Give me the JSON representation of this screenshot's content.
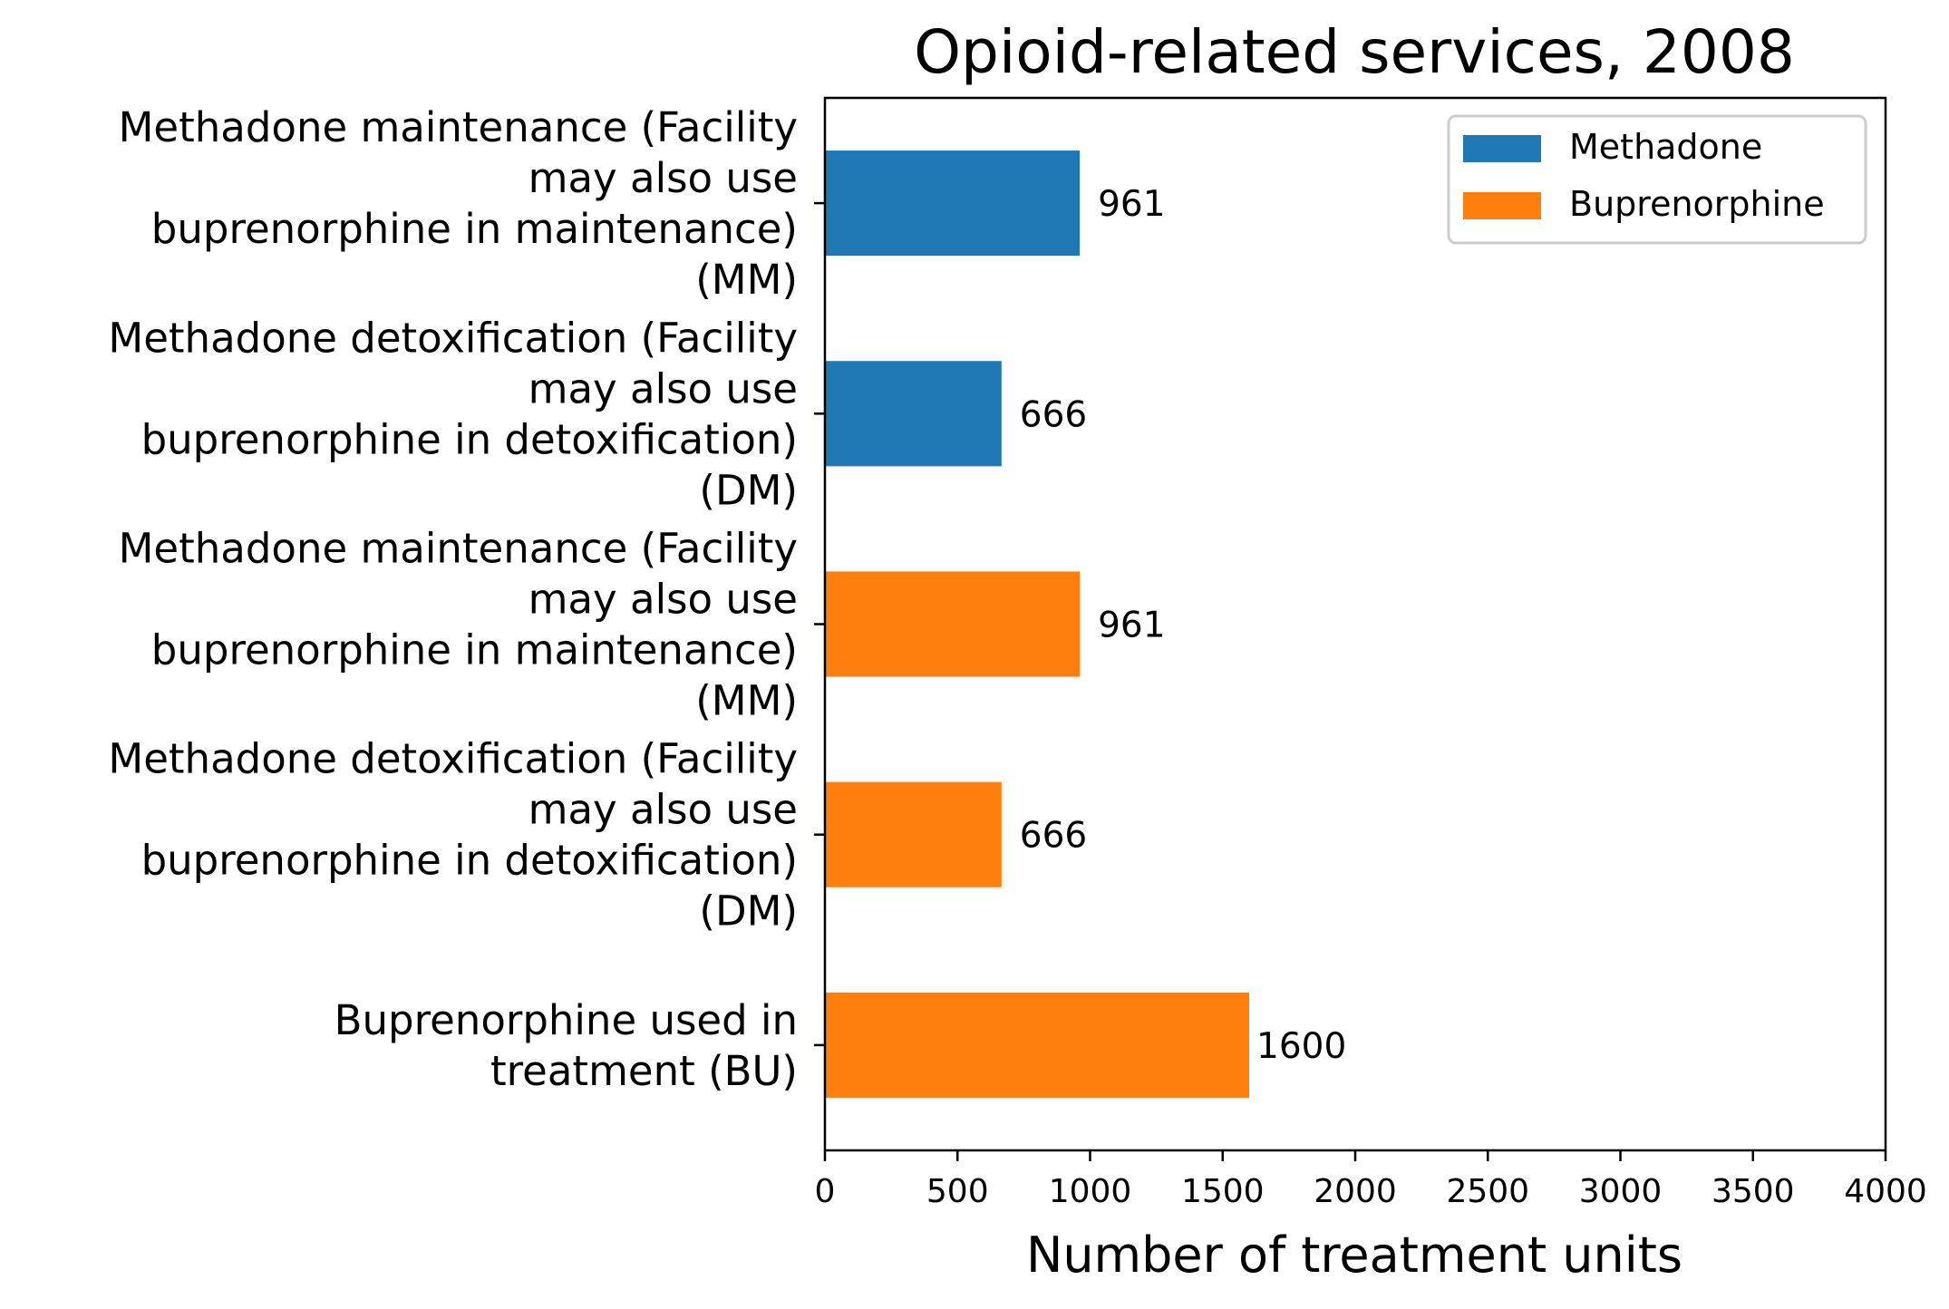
{
  "chart_data": {
    "type": "bar",
    "orientation": "horizontal",
    "title": "Opioid-related services, 2008",
    "xlabel": "Number of treatment units",
    "ylabel": "",
    "xlim": [
      0,
      4000
    ],
    "xticks": [
      "0",
      "500",
      "1000",
      "1500",
      "2000",
      "2500",
      "3000",
      "3500",
      "4000"
    ],
    "grid": false,
    "legend_position": "top-right",
    "categories": [
      {
        "label_lines": [
          "Methadone maintenance (Facility",
          "may also use",
          "buprenorphine in maintenance)",
          "(MM)"
        ],
        "value": 961,
        "value_label": "961",
        "series": "Methadone"
      },
      {
        "label_lines": [
          "Methadone detoxification (Facility",
          "may also use",
          "buprenorphine in detoxification)",
          "(DM)"
        ],
        "value": 666,
        "value_label": "666",
        "series": "Methadone"
      },
      {
        "label_lines": [
          "Methadone maintenance (Facility",
          "may also use",
          "buprenorphine in maintenance)",
          "(MM)"
        ],
        "value": 961,
        "value_label": "961",
        "series": "Buprenorphine"
      },
      {
        "label_lines": [
          "Methadone detoxification (Facility",
          "may also use",
          "buprenorphine in detoxification)",
          "(DM)"
        ],
        "value": 666,
        "value_label": "666",
        "series": "Buprenorphine"
      },
      {
        "label_lines": [
          "Buprenorphine used in",
          "treatment (BU)"
        ],
        "value": 1600,
        "value_label": "1600",
        "series": "Buprenorphine"
      }
    ],
    "series": [
      {
        "name": "Methadone",
        "color": "#1f77b4"
      },
      {
        "name": "Buprenorphine",
        "color": "#ff7f0e"
      }
    ]
  }
}
